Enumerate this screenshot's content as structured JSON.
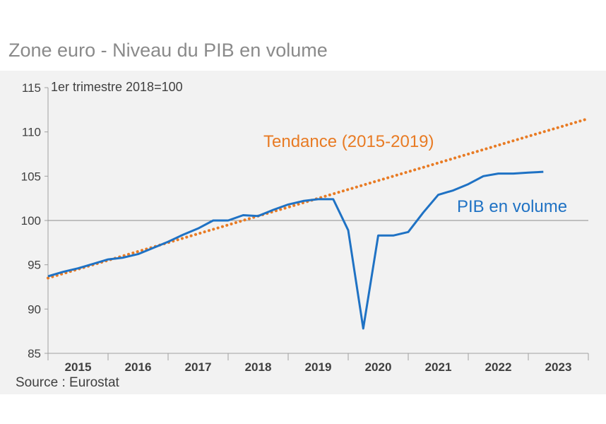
{
  "title": "Zone euro - Niveau du PIB en volume",
  "source": "Source : Eurostat",
  "chart_data": {
    "type": "line",
    "unit_label": "1er trimestre 2018=100",
    "ylim": [
      85,
      115
    ],
    "yticks": [
      85,
      90,
      95,
      100,
      105,
      110,
      115
    ],
    "reference_line": 100,
    "years": [
      "2015",
      "2016",
      "2017",
      "2018",
      "2019",
      "2020",
      "2021",
      "2022",
      "2023"
    ],
    "x_start": 2015.0,
    "x_end": 2024.0,
    "grid": false,
    "colors": {
      "gdp": "#1f72c4",
      "trend": "#e87b24",
      "axis": "#a0a0a0",
      "background": "#f2f2f2"
    },
    "series": [
      {
        "name": "PIB en volume",
        "style": "solid",
        "x": [
          2015.0,
          2015.25,
          2015.5,
          2015.75,
          2016.0,
          2016.25,
          2016.5,
          2016.75,
          2017.0,
          2017.25,
          2017.5,
          2017.75,
          2018.0,
          2018.25,
          2018.5,
          2018.75,
          2019.0,
          2019.25,
          2019.5,
          2019.75,
          2020.0,
          2020.25,
          2020.5,
          2020.75,
          2021.0,
          2021.25,
          2021.5,
          2021.75,
          2022.0,
          2022.25,
          2022.5,
          2022.75,
          2023.0,
          2023.25
        ],
        "values": [
          93.7,
          94.2,
          94.6,
          95.1,
          95.6,
          95.8,
          96.2,
          96.9,
          97.6,
          98.4,
          99.1,
          100.0,
          100.0,
          100.6,
          100.5,
          101.2,
          101.8,
          102.2,
          102.4,
          102.4,
          98.9,
          87.8,
          98.3,
          98.3,
          98.7,
          100.9,
          102.9,
          103.4,
          104.1,
          105.0,
          105.3,
          105.3,
          105.4,
          105.5
        ]
      },
      {
        "name": "Tendance (2015-2019)",
        "style": "dotted",
        "x": [
          2015.0,
          2024.0
        ],
        "values": [
          93.5,
          111.5
        ]
      }
    ]
  }
}
